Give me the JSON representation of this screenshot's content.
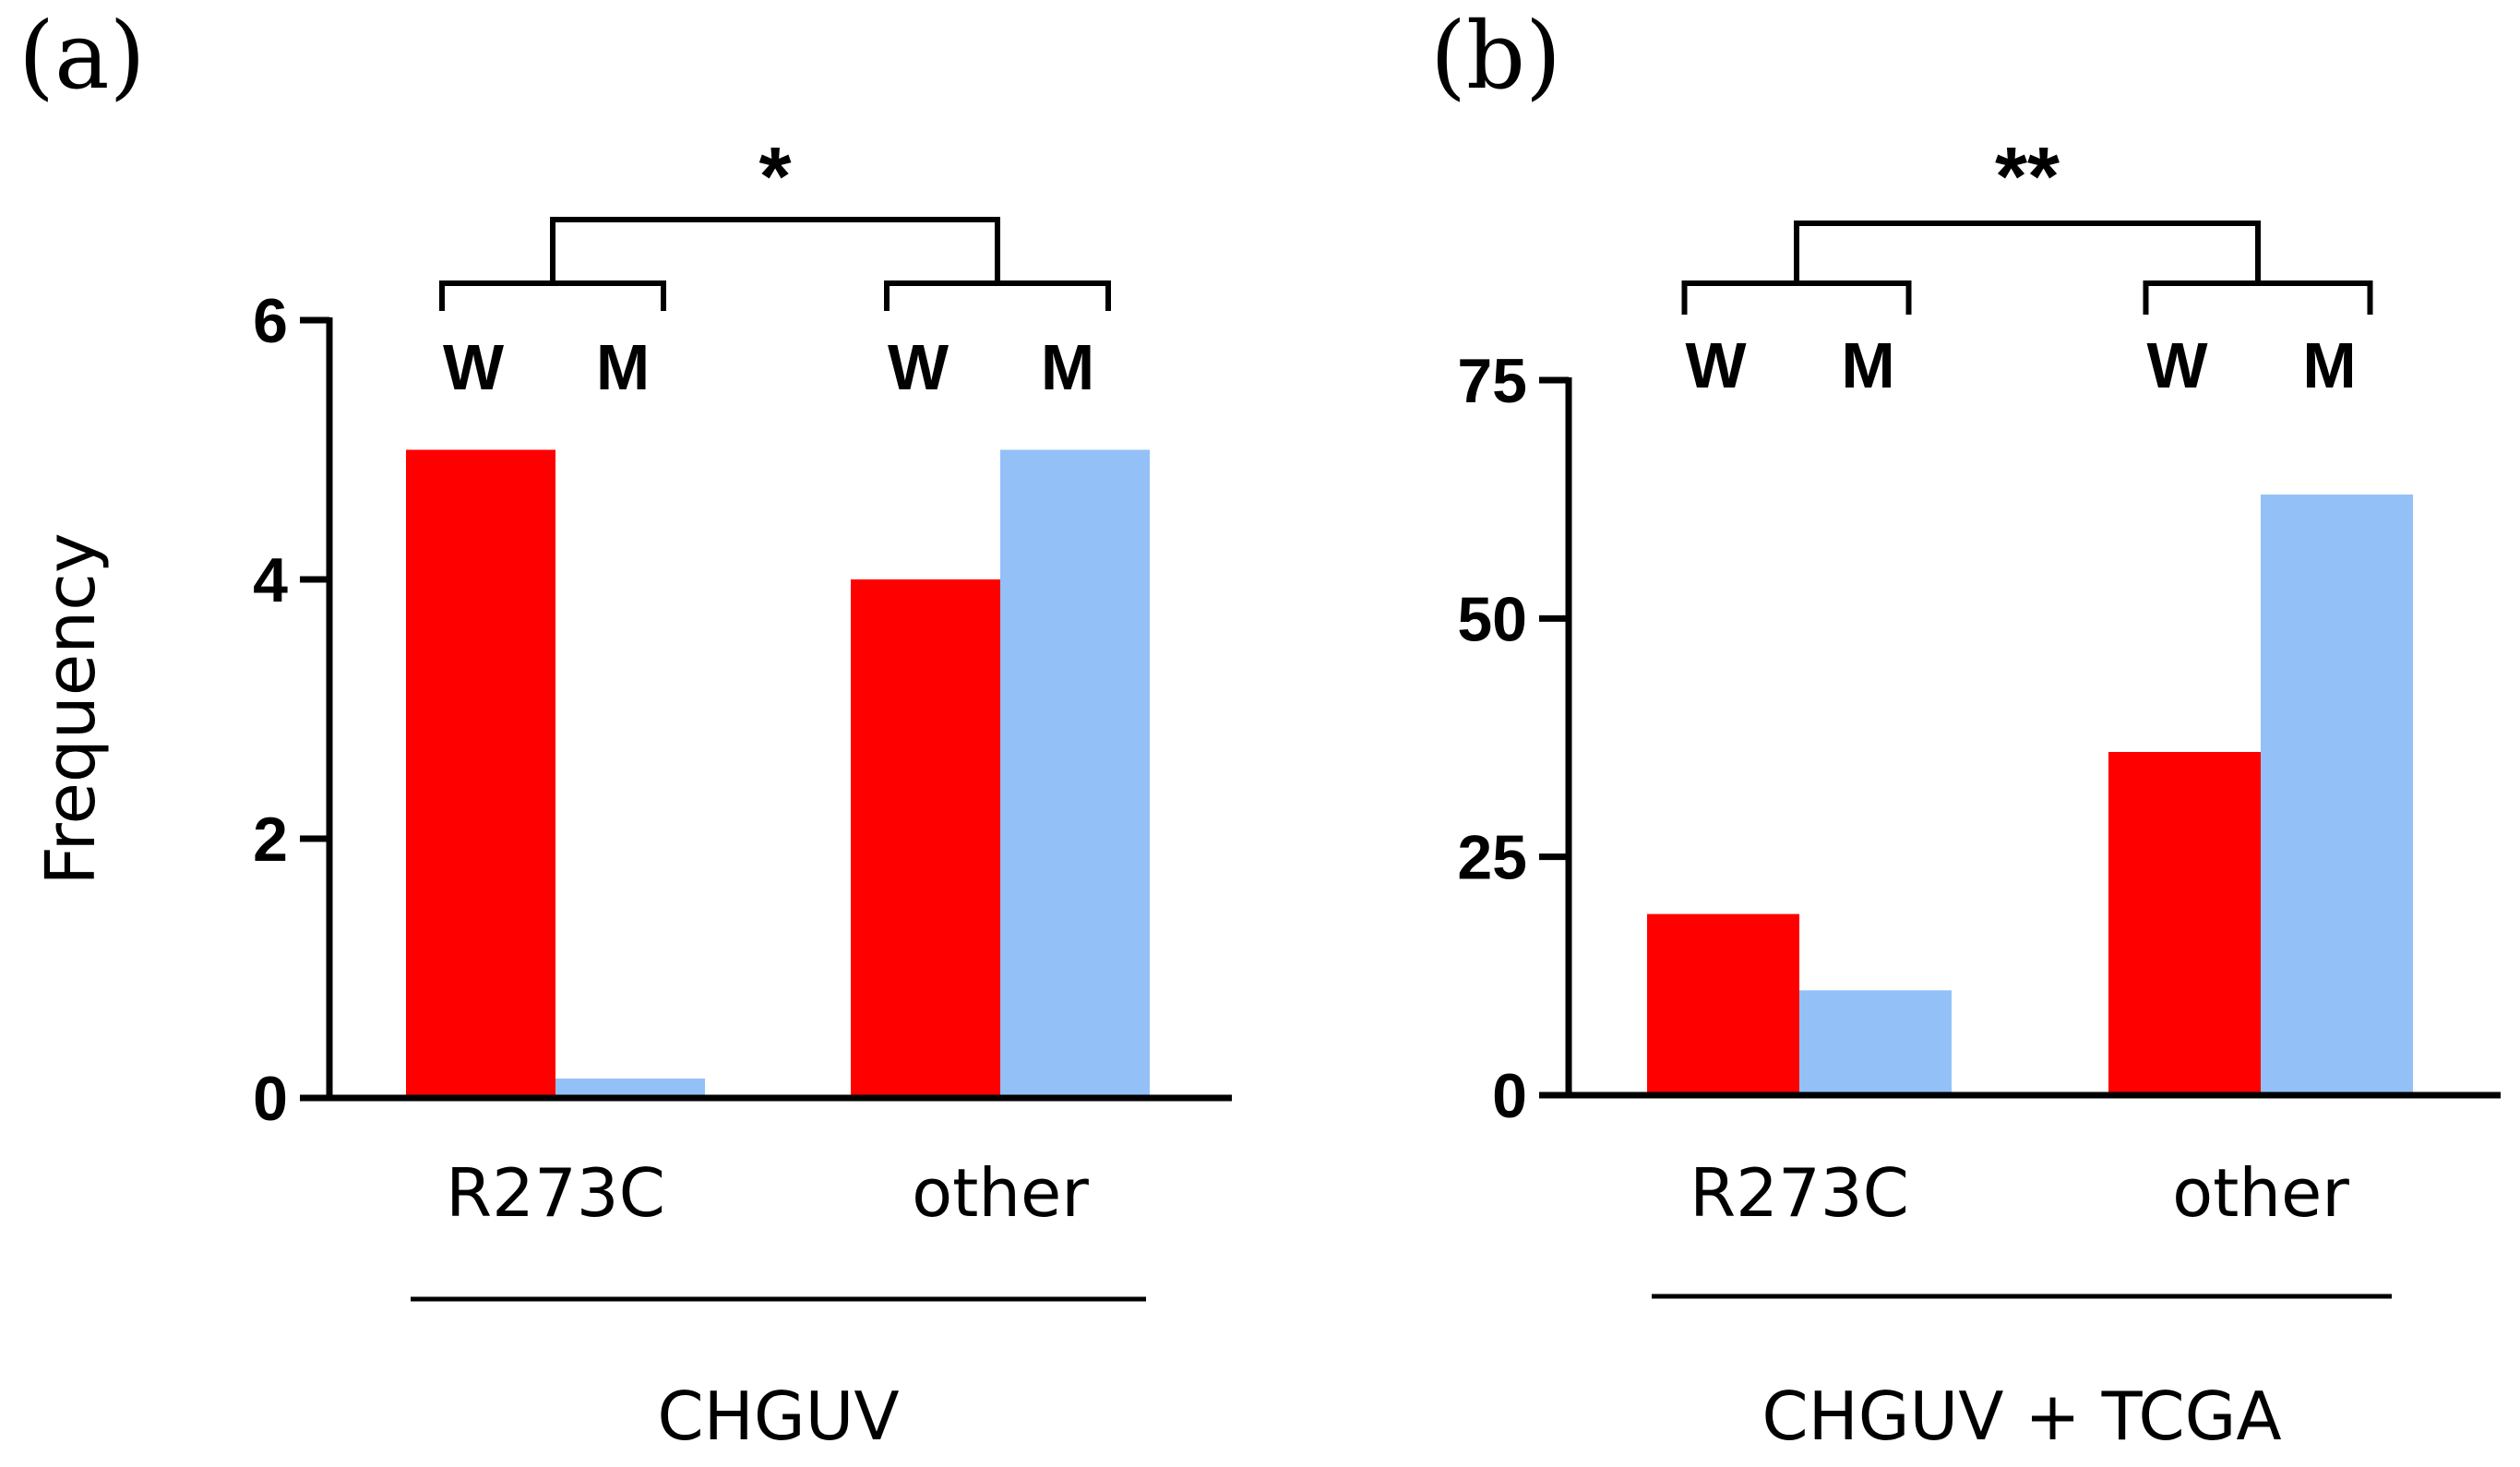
{
  "chart_data": [
    {
      "type": "bar",
      "panel_label": "(a)",
      "categories": [
        "R273C",
        "other"
      ],
      "series": [
        {
          "name": "W",
          "color": "#ff0000",
          "values": [
            5,
            4
          ]
        },
        {
          "name": "M",
          "color": "#93c1f7",
          "values": [
            0.15,
            5
          ]
        }
      ],
      "ylabel": "Frequency",
      "ylim": [
        0,
        6
      ],
      "yticks": [
        0,
        2,
        4,
        6
      ],
      "group_label": "CHGUV",
      "significance": "*"
    },
    {
      "type": "bar",
      "panel_label": "(b)",
      "categories": [
        "R273C",
        "other"
      ],
      "series": [
        {
          "name": "W",
          "color": "#ff0000",
          "values": [
            19,
            36
          ]
        },
        {
          "name": "M",
          "color": "#93c1f7",
          "values": [
            11,
            63
          ]
        }
      ],
      "ylabel": "",
      "ylim": [
        0,
        75
      ],
      "yticks": [
        0,
        25,
        50,
        75
      ],
      "group_label": "CHGUV + TCGA",
      "significance": "**"
    }
  ]
}
